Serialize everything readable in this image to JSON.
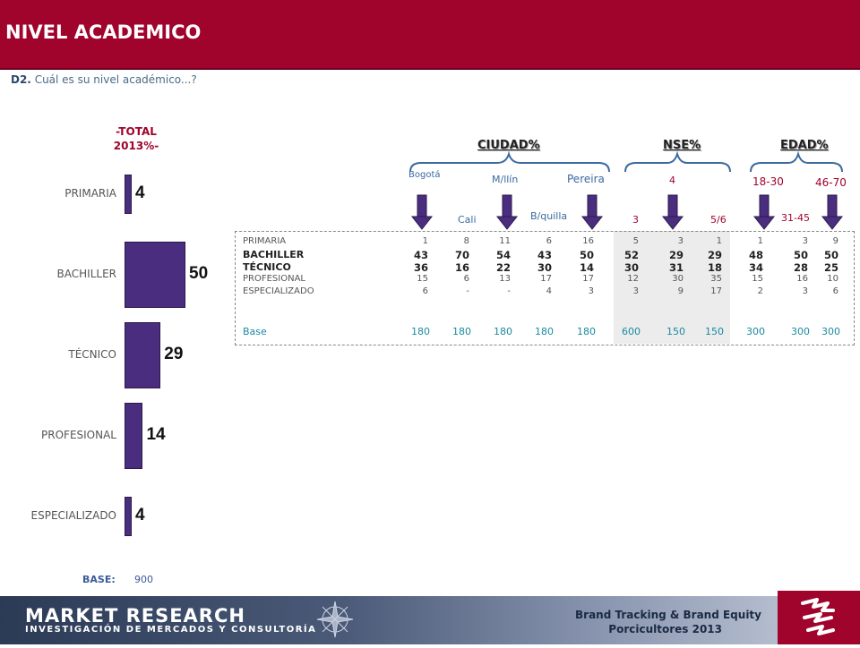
{
  "header": {
    "title": "NIVEL ACADEMICO"
  },
  "question": {
    "code": "D2.",
    "text": " Cuál es su nivel académico...?"
  },
  "total_title_line1": "-TOTAL",
  "total_title_line2": "2013%-",
  "base": {
    "label": "BASE:",
    "value": "900"
  },
  "groups": {
    "ciudad": "CIUDAD%",
    "nse": "NSE%",
    "edad": "EDAD%"
  },
  "columns": {
    "bogota": "Bogotá",
    "cali": "Cali",
    "medellin": "M/llín",
    "barranquilla": "B/quilla",
    "pereira": "Pereira",
    "nse3": "3",
    "nse4": "4",
    "nse56": "5/6",
    "edad1": "18-30",
    "edad2": "31-45",
    "edad3": "46-70"
  },
  "colors": {
    "header": "#a0032b",
    "bar": "#4b2d7f",
    "arrow": "#4b2d7f",
    "base_teal": "#1a8aa0"
  },
  "chart_data": {
    "type": "bar",
    "orientation": "horizontal",
    "title": "-TOTAL 2013%-",
    "categories": [
      "PRIMARIA",
      "BACHILLER",
      "TÉCNICO",
      "PROFESIONAL",
      "ESPECIALIZADO"
    ],
    "values": [
      4,
      50,
      29,
      14,
      4
    ],
    "xlim": [
      0,
      50
    ],
    "grid": false
  },
  "table": {
    "rows": [
      {
        "label": "PRIMARIA",
        "bold": false,
        "values": [
          "1",
          "8",
          "11",
          "6",
          "16",
          "5",
          "3",
          "1",
          "1",
          "3",
          "9"
        ]
      },
      {
        "label": "BACHILLER",
        "bold": true,
        "values": [
          "43",
          "70",
          "54",
          "43",
          "50",
          "52",
          "29",
          "29",
          "48",
          "50",
          "50"
        ]
      },
      {
        "label": "TÉCNICO",
        "bold": true,
        "values": [
          "36",
          "16",
          "22",
          "30",
          "14",
          "30",
          "31",
          "18",
          "34",
          "28",
          "25"
        ]
      },
      {
        "label": "PROFESIONAL",
        "bold": false,
        "values": [
          "15",
          "6",
          "13",
          "17",
          "17",
          "12",
          "30",
          "35",
          "15",
          "16",
          "10"
        ]
      },
      {
        "label": "ESPECIALIZADO",
        "bold": false,
        "values": [
          "6",
          "-",
          "-",
          "4",
          "3",
          "3",
          "9",
          "17",
          "2",
          "3",
          "6"
        ]
      }
    ],
    "base_label": "Base",
    "base_values": [
      "180",
      "180",
      "180",
      "180",
      "180",
      "600",
      "150",
      "150",
      "300",
      "300",
      "300"
    ]
  },
  "footer": {
    "logo_title": "MARKET RESEARCH",
    "logo_subtitle": "INVESTIGACIÓN DE MERCADOS Y CONSULTORÍA",
    "brand_line1": "Brand Tracking & Brand Equity",
    "brand_line2": "Porcicultores 2013",
    "logo_icon": "compass-rose-icon",
    "client_icon": "client-logo-icon"
  }
}
